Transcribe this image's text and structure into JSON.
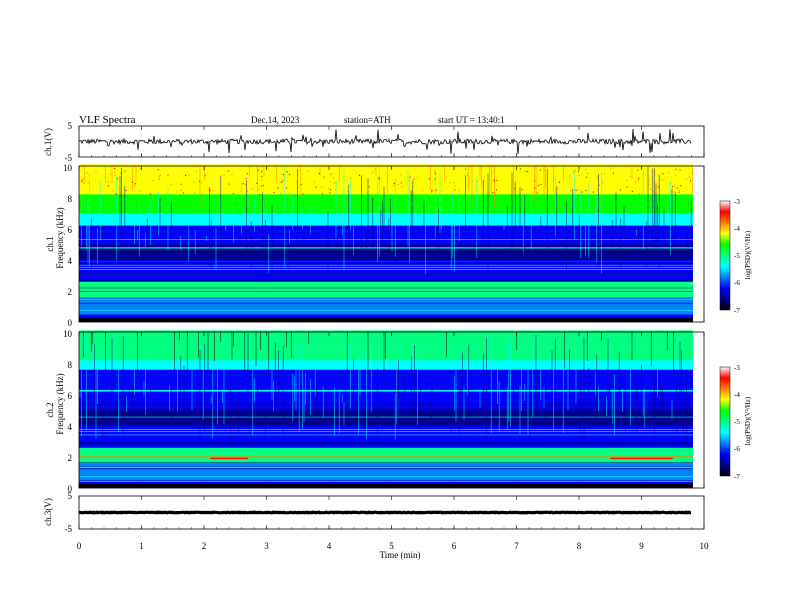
{
  "header": {
    "title": "VLF  Spectra",
    "date": "Dec.14, 2023",
    "station": "station=ATH",
    "start": "start  UT  =    13:40:1"
  },
  "colors": {
    "trace": "#000000",
    "spectrogram_scale": [
      "#000000",
      "#00008b",
      "#0000ff",
      "#0080ff",
      "#00ffff",
      "#00ff80",
      "#00ff00",
      "#ffff00",
      "#ff8000",
      "#ff0000",
      "#ffffff"
    ]
  },
  "chart_data": [
    {
      "type": "line",
      "label": "ch.1(V)",
      "x_range": [
        0,
        9.8
      ],
      "ylim": [
        -5,
        5
      ],
      "y_ticks": [
        "5",
        "-5"
      ],
      "baseline": 0,
      "amplitude": 0.8
    },
    {
      "type": "heatmap",
      "ylabel_top": "ch.1",
      "ylabel": "Frequency  (kHz)",
      "ylim": [
        0,
        10
      ],
      "y_ticks": [
        "0",
        "2",
        "4",
        "6",
        "8",
        "10"
      ],
      "colorbar": {
        "label": "log(PSD)(V²/Hz)",
        "range": [
          -7,
          -3
        ],
        "ticks": [
          "-3",
          "-4",
          "-5",
          "-6",
          "-7"
        ]
      }
    },
    {
      "type": "heatmap",
      "ylabel_top": "ch.2",
      "ylabel": "Frequency  (kHz)",
      "ylim": [
        0,
        10
      ],
      "y_ticks": [
        "0",
        "2",
        "4",
        "6",
        "8",
        "10"
      ],
      "colorbar": {
        "label": "log(PSD)(V²/Hz)",
        "range": [
          -7,
          -3
        ],
        "ticks": [
          "-3",
          "-4",
          "-5",
          "-6",
          "-7"
        ]
      }
    },
    {
      "type": "line",
      "label": "ch.3(V)",
      "x_range": [
        0,
        9.8
      ],
      "ylim": [
        -5,
        5
      ],
      "y_ticks": [
        "5",
        "-5"
      ],
      "baseline": 0,
      "amplitude": 0.1
    }
  ],
  "x_axis": {
    "label": "Time  (min)",
    "range": [
      0,
      10
    ],
    "ticks": [
      "0",
      "1",
      "2",
      "3",
      "4",
      "5",
      "6",
      "7",
      "8",
      "9",
      "10"
    ]
  }
}
